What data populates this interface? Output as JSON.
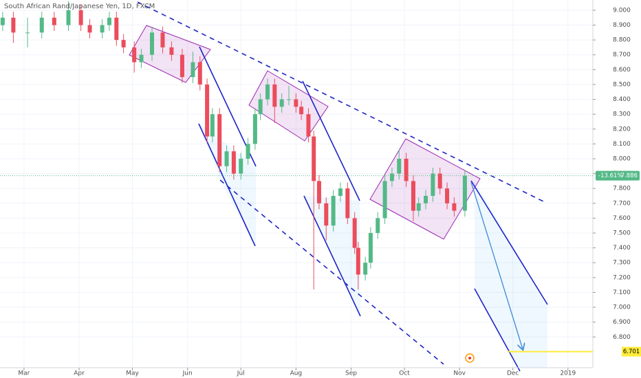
{
  "chart_data": {
    "type": "candlestick",
    "title": "South African Rand/Japanese Yen, 1D, FXCM",
    "x": [
      -12,
      -6,
      2,
      10,
      17,
      25,
      32,
      37,
      44,
      48,
      52,
      56,
      62,
      66,
      72,
      78,
      83,
      89,
      95,
      99,
      103,
      106,
      110,
      114,
      118,
      122,
      126,
      130,
      133,
      137,
      141,
      145,
      149,
      153,
      156,
      160,
      163,
      166,
      170,
      174,
      178,
      182,
      186,
      188,
      192,
      195,
      199,
      203,
      207,
      211,
      215,
      219,
      222,
      226,
      230,
      234,
      238,
      242,
      248
    ],
    "open": [
      8.9,
      8.95,
      8.85,
      8.85,
      8.95,
      8.9,
      9.0,
      8.9,
      8.85,
      8.9,
      8.95,
      8.8,
      8.75,
      8.65,
      8.7,
      8.85,
      8.75,
      8.7,
      8.55,
      8.65,
      8.5,
      8.15,
      8.3,
      7.95,
      8.05,
      7.9,
      8.0,
      8.1,
      8.3,
      8.4,
      8.5,
      8.35,
      8.4,
      8.4,
      8.35,
      8.3,
      8.15,
      7.85,
      7.7,
      7.55,
      7.75,
      7.8,
      7.6,
      7.4,
      7.22,
      7.3,
      7.5,
      7.6,
      7.85,
      7.9,
      8.0,
      7.85,
      7.65,
      7.7,
      7.75,
      7.9,
      7.8,
      7.7,
      7.65
    ],
    "high": [
      8.99,
      8.99,
      8.95,
      8.99,
      8.99,
      9.06,
      9.04,
      8.94,
      8.94,
      8.99,
      8.99,
      8.84,
      8.79,
      8.74,
      8.89,
      8.89,
      8.79,
      8.74,
      8.72,
      8.69,
      8.54,
      8.34,
      8.34,
      8.09,
      8.09,
      8.04,
      8.14,
      8.34,
      8.44,
      8.54,
      8.54,
      8.44,
      8.49,
      8.44,
      8.39,
      8.34,
      8.19,
      7.89,
      7.74,
      7.79,
      7.84,
      7.84,
      7.64,
      7.44,
      7.34,
      7.54,
      7.64,
      7.89,
      7.94,
      8.06,
      8.04,
      7.89,
      7.74,
      7.79,
      7.94,
      7.94,
      7.84,
      7.74,
      7.92
    ],
    "low": [
      8.86,
      8.78,
      8.75,
      8.81,
      8.86,
      8.86,
      8.86,
      8.81,
      8.81,
      8.86,
      8.76,
      8.71,
      8.58,
      8.61,
      8.66,
      8.71,
      8.66,
      8.51,
      8.51,
      8.46,
      8.11,
      8.11,
      7.91,
      7.91,
      7.86,
      7.86,
      7.96,
      8.06,
      8.26,
      8.36,
      8.24,
      8.31,
      8.36,
      8.31,
      8.26,
      8.11,
      7.12,
      7.66,
      7.45,
      7.51,
      7.71,
      7.56,
      7.36,
      7.12,
      7.18,
      7.26,
      7.46,
      7.56,
      7.81,
      7.86,
      7.81,
      7.58,
      7.61,
      7.66,
      7.71,
      7.76,
      7.66,
      7.61,
      7.61
    ],
    "close": [
      8.95,
      8.85,
      8.85,
      8.95,
      8.9,
      9.0,
      8.9,
      8.85,
      8.9,
      8.95,
      8.8,
      8.75,
      8.65,
      8.7,
      8.85,
      8.75,
      8.7,
      8.55,
      8.65,
      8.5,
      8.15,
      8.3,
      7.95,
      8.05,
      7.9,
      8.0,
      8.1,
      8.3,
      8.4,
      8.5,
      8.35,
      8.4,
      8.4,
      8.35,
      8.3,
      8.15,
      7.85,
      7.7,
      7.55,
      7.75,
      7.8,
      7.6,
      7.4,
      7.22,
      7.3,
      7.5,
      7.6,
      7.85,
      7.9,
      8.0,
      7.85,
      7.65,
      7.7,
      7.75,
      7.9,
      7.8,
      7.7,
      7.65,
      7.886
    ],
    "up_color": "#53b987",
    "down_color": "#eb4d5c",
    "xlim": [
      -13.5,
      320
    ],
    "xticks": [
      {
        "value": 0,
        "label": "Mar"
      },
      {
        "value": 31,
        "label": "Apr"
      },
      {
        "value": 61,
        "label": "May"
      },
      {
        "value": 92,
        "label": "Jun"
      },
      {
        "value": 122,
        "label": "Jul"
      },
      {
        "value": 153,
        "label": "Aug"
      },
      {
        "value": 184,
        "label": "Sep"
      },
      {
        "value": 214,
        "label": "Oct"
      },
      {
        "value": 245,
        "label": "Nov"
      },
      {
        "value": 275,
        "label": "Dec"
      },
      {
        "value": 306,
        "label": "2019"
      }
    ],
    "ylim": [
      6.593,
      9.069
    ],
    "yticks": [
      {
        "value": 6.8,
        "label": "6.800"
      },
      {
        "value": 6.9,
        "label": "6.900"
      },
      {
        "value": 7.0,
        "label": "7.000"
      },
      {
        "value": 7.1,
        "label": "7.100"
      },
      {
        "value": 7.2,
        "label": "7.200"
      },
      {
        "value": 7.3,
        "label": "7.300"
      },
      {
        "value": 7.4,
        "label": "7.400"
      },
      {
        "value": 7.5,
        "label": "7.500"
      },
      {
        "value": 7.6,
        "label": "7.600"
      },
      {
        "value": 7.7,
        "label": "7.700"
      },
      {
        "value": 7.8,
        "label": "7.800"
      },
      {
        "value": 7.9,
        "label": "7.900"
      },
      {
        "value": 8.0,
        "label": "8.000"
      },
      {
        "value": 8.1,
        "label": "8.100"
      },
      {
        "value": 8.2,
        "label": "8.200"
      },
      {
        "value": 8.3,
        "label": "8.300"
      },
      {
        "value": 8.4,
        "label": "8.400"
      },
      {
        "value": 8.5,
        "label": "8.500"
      },
      {
        "value": 8.6,
        "label": "8.600"
      },
      {
        "value": 8.7,
        "label": "8.700"
      },
      {
        "value": 8.8,
        "label": "8.800"
      },
      {
        "value": 8.9,
        "label": "8.900"
      },
      {
        "value": 9.0,
        "label": "9.000"
      }
    ],
    "grid": true,
    "last_price": {
      "value": 7.886,
      "label": "7.886",
      "change": "-13.61%",
      "color": "#53b987"
    },
    "target_price": {
      "value": 6.701,
      "label": "6.701",
      "color": "#ffeb3b"
    }
  }
}
